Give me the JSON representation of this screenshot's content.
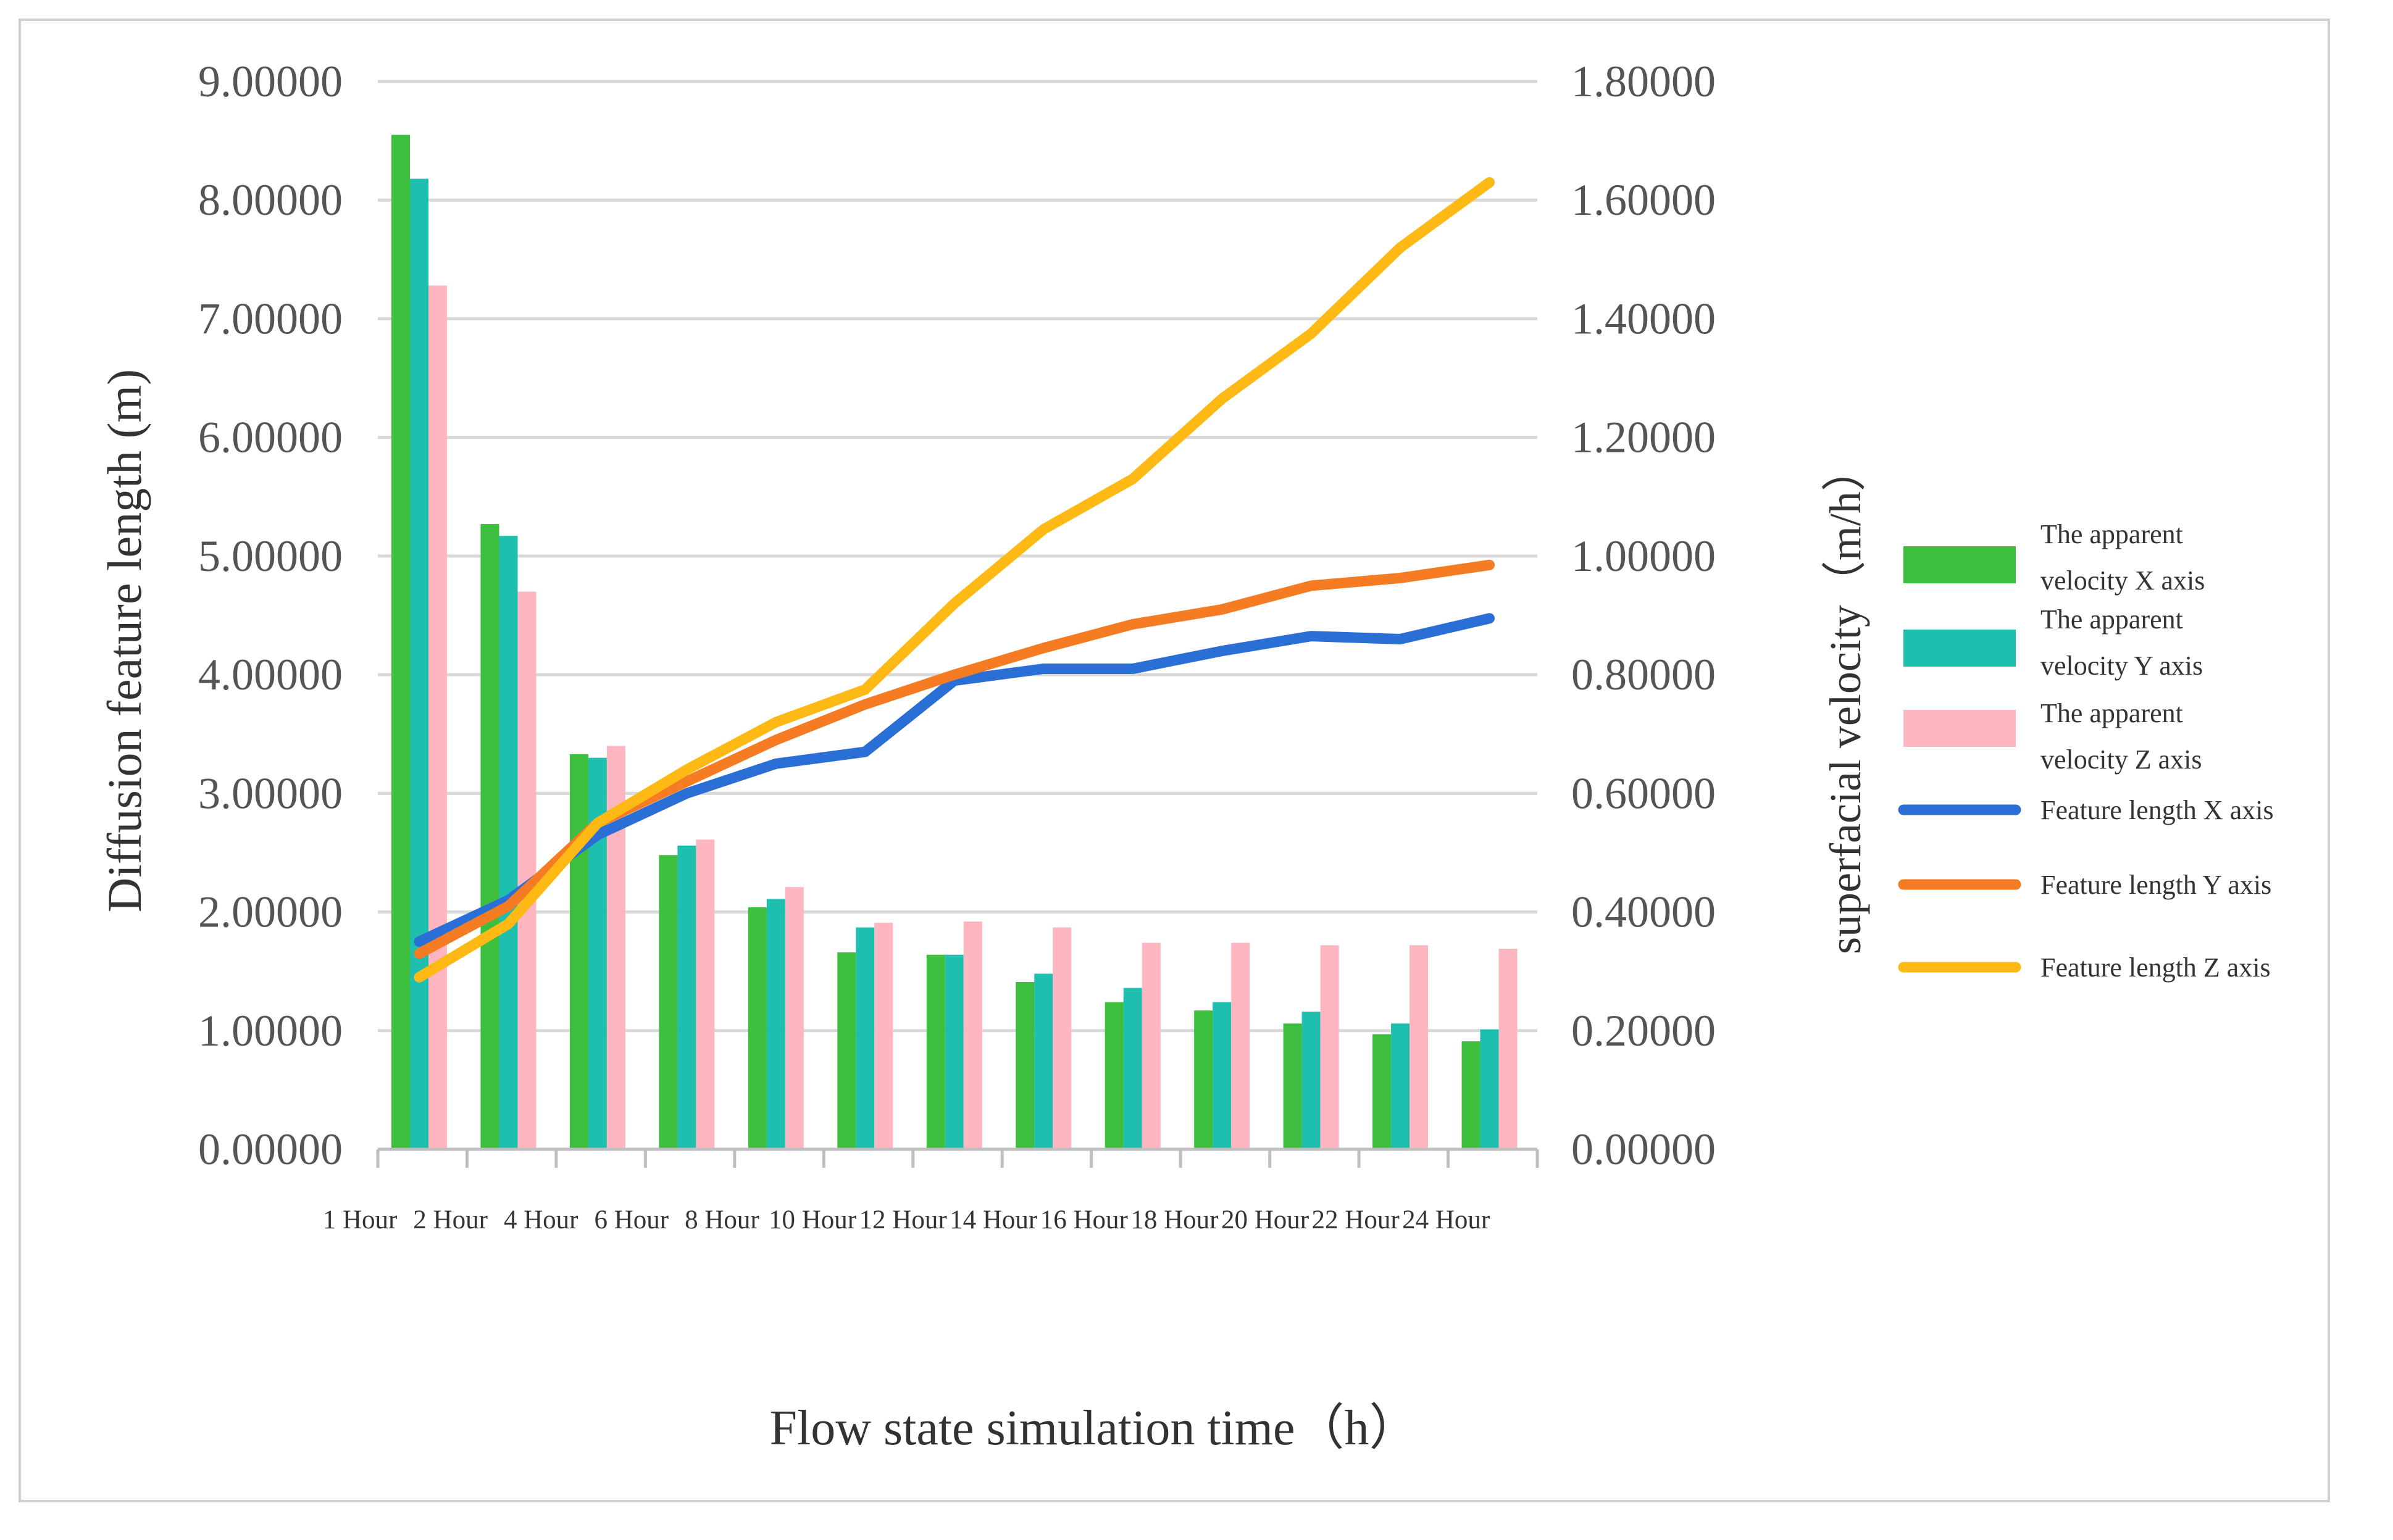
{
  "chart_data": {
    "type": "bar",
    "categories": [
      "1 Hour",
      "2 Hour",
      "4 Hour",
      "6 Hour",
      "8 Hour",
      "10 Hour",
      "12 Hour",
      "14 Hour",
      "16 Hour",
      "18 Hour",
      "20 Hour",
      "22 Hour",
      "24 Hour"
    ],
    "xlabel": "Flow state simulation time（h）",
    "ylabel": "Diffusion feature length (m)",
    "ylabel_right": "superfacial velocity（m/h）",
    "ylim": [
      0,
      9
    ],
    "ylim_right": [
      0,
      1.8
    ],
    "yticks": [
      "0.00000",
      "1.00000",
      "2.00000",
      "3.00000",
      "4.00000",
      "5.00000",
      "6.00000",
      "7.00000",
      "8.00000",
      "9.00000"
    ],
    "yticks_right": [
      "0.00000",
      "0.20000",
      "0.40000",
      "0.60000",
      "0.80000",
      "1.00000",
      "1.20000",
      "1.40000",
      "1.60000",
      "1.80000"
    ],
    "grid": true,
    "legend_position": "right",
    "bar_series": [
      {
        "name": "The apparent velocity X axis",
        "color": "#3dbf3d",
        "axis": "left",
        "values": [
          8.55,
          5.27,
          3.33,
          2.48,
          2.04,
          1.66,
          1.64,
          1.41,
          1.24,
          1.17,
          1.06,
          0.97,
          0.91
        ]
      },
      {
        "name": "The apparent velocity Y axis",
        "color": "#1fbfb0",
        "axis": "left",
        "values": [
          8.18,
          5.17,
          3.3,
          2.56,
          2.11,
          1.87,
          1.64,
          1.48,
          1.36,
          1.24,
          1.16,
          1.06,
          1.01
        ]
      },
      {
        "name": "The apparent velocity Z axis",
        "color": "#ffb6c1",
        "axis": "left",
        "values": [
          7.28,
          4.7,
          3.4,
          2.61,
          2.21,
          1.91,
          1.92,
          1.87,
          1.74,
          1.74,
          1.72,
          1.72,
          1.69
        ]
      }
    ],
    "line_series": [
      {
        "name": "Feature length X axis",
        "color": "#2a6fd6",
        "axis": "right",
        "values": [
          0.35,
          0.42,
          0.53,
          0.6,
          0.65,
          0.67,
          0.79,
          0.81,
          0.81,
          0.84,
          0.865,
          0.86,
          0.895
        ]
      },
      {
        "name": "Feature length Y axis",
        "color": "#f57c22",
        "axis": "right",
        "values": [
          0.33,
          0.41,
          0.55,
          0.62,
          0.69,
          0.75,
          0.8,
          0.845,
          0.885,
          0.91,
          0.95,
          0.963,
          0.985
        ]
      },
      {
        "name": "Feature length Z axis",
        "color": "#ffb914",
        "axis": "right",
        "values": [
          0.29,
          0.38,
          0.55,
          0.64,
          0.72,
          0.775,
          0.92,
          1.045,
          1.13,
          1.265,
          1.375,
          1.52,
          1.63
        ]
      }
    ]
  }
}
